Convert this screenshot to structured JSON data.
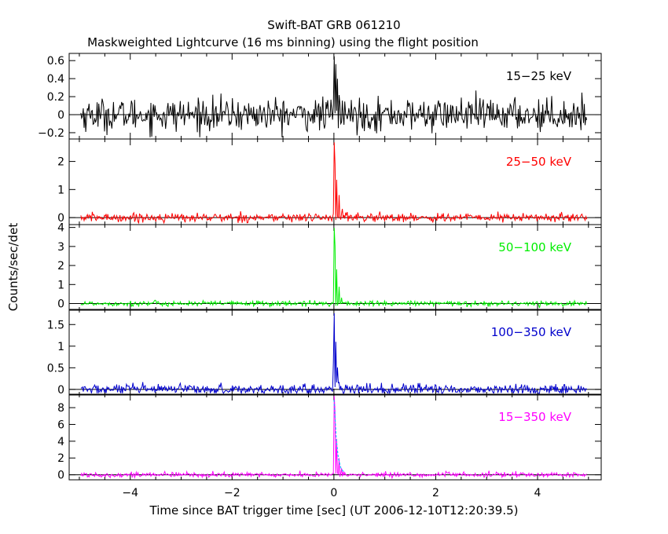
{
  "chart_data": {
    "type": "line",
    "title": "Swift-BAT GRB 061210",
    "subtitle": "Maskweighted Lightcurve (16 ms binning) using the flight position",
    "xlabel": "Time since BAT trigger time [sec] (UT 2006-12-10T12:20:39.5)",
    "ylabel": "Counts/sec/det",
    "xlim": [
      -5.2,
      5.25
    ],
    "x_ticks": [
      -4,
      -2,
      0,
      2,
      4
    ],
    "x_tick_labels": [
      "−4",
      "−2",
      "0",
      "2",
      "4"
    ],
    "x_range_data": [
      -4.97,
      4.97
    ],
    "bin_width_sec": 0.016,
    "grid": false,
    "panels": [
      {
        "band": "15−25 keV",
        "color": "#000000",
        "ylim": [
          -0.27,
          0.68
        ],
        "y_ticks": [
          -0.2,
          0,
          0.2,
          0.4,
          0.6
        ],
        "y_tick_labels": [
          "−0.2",
          "0",
          "0.2",
          "0.4",
          "0.6"
        ],
        "noise_sigma": 0.09,
        "peaks": [
          [
            0.0,
            0.66
          ],
          [
            0.03,
            0.55
          ],
          [
            0.06,
            0.38
          ],
          [
            0.1,
            0.22
          ],
          [
            0.16,
            0.12
          ]
        ]
      },
      {
        "band": "25−50 keV",
        "color": "#ff0000",
        "ylim": [
          -0.25,
          2.8
        ],
        "y_ticks": [
          0,
          1,
          2
        ],
        "y_tick_labels": [
          "0",
          "1",
          "2"
        ],
        "noise_sigma": 0.08,
        "peaks": [
          [
            0.0,
            2.7
          ],
          [
            0.02,
            1.9
          ],
          [
            0.05,
            1.4
          ],
          [
            0.1,
            0.8
          ],
          [
            0.16,
            0.35
          ],
          [
            0.22,
            0.15
          ]
        ]
      },
      {
        "band": "50−100 keV",
        "color": "#00ee00",
        "ylim": [
          -0.35,
          4.15
        ],
        "y_ticks": [
          0,
          1,
          2,
          3,
          4
        ],
        "y_tick_labels": [
          "0",
          "1",
          "2",
          "3",
          "4"
        ],
        "noise_sigma": 0.07,
        "peaks": [
          [
            0.0,
            4.0
          ],
          [
            0.02,
            3.0
          ],
          [
            0.05,
            1.8
          ],
          [
            0.09,
            0.9
          ],
          [
            0.14,
            0.3
          ]
        ]
      },
      {
        "band": "100−350 keV",
        "color": "#0000cc",
        "ylim": [
          -0.13,
          1.85
        ],
        "y_ticks": [
          0,
          0.5,
          1,
          1.5
        ],
        "y_tick_labels": [
          "0",
          "0.5",
          "1",
          "1.5"
        ],
        "noise_sigma": 0.06,
        "peaks": [
          [
            -0.02,
            0.6
          ],
          [
            0.0,
            1.8
          ],
          [
            0.03,
            1.1
          ],
          [
            0.06,
            0.5
          ],
          [
            0.1,
            0.15
          ]
        ]
      },
      {
        "band": "15−350 keV",
        "color": "#ff00ff",
        "ylim": [
          -0.6,
          9.6
        ],
        "y_ticks": [
          0,
          2,
          4,
          6,
          8
        ],
        "y_tick_labels": [
          "0",
          "2",
          "4",
          "6",
          "8"
        ],
        "noise_sigma": 0.15,
        "peaks": [
          [
            0.0,
            9.4
          ],
          [
            0.02,
            7.5
          ],
          [
            0.05,
            4.3
          ],
          [
            0.09,
            2.0
          ],
          [
            0.14,
            0.8
          ],
          [
            0.2,
            0.3
          ]
        ],
        "fit_color": "#00bfff"
      }
    ]
  }
}
